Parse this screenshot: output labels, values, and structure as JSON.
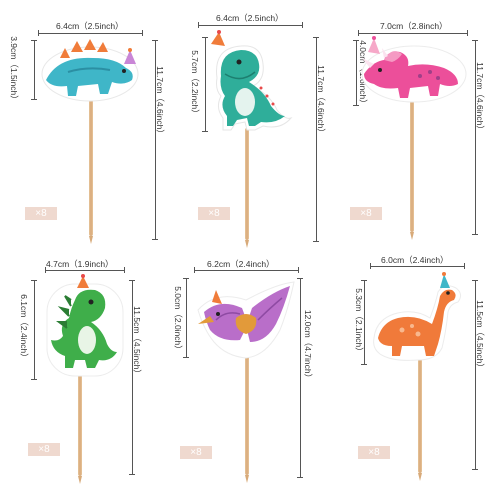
{
  "toppers": [
    {
      "name": "stegosaurus",
      "width": "6.4cm（2.5inch）",
      "head_height": "3.9cm（1.5inch）",
      "total_height": "11.7cm（4.6inch）",
      "quantity": "×8",
      "body_color": "#3fb6c8",
      "accent_color": "#f07c3a"
    },
    {
      "name": "t-rex-green",
      "width": "6.4cm（2.5inch）",
      "head_height": "5.7cm（2.2inch）",
      "total_height": "11.7cm（4.6inch）",
      "quantity": "×8",
      "body_color": "#2fae9a",
      "accent_color": "#e84a4a"
    },
    {
      "name": "triceratops",
      "width": "7.0cm（2.8inch）",
      "head_height": "4.0cm（1.6inch）",
      "total_height": "11.7cm（4.6inch）",
      "quantity": "×8",
      "body_color": "#ec4f9a",
      "accent_color": "#a03f88"
    },
    {
      "name": "dino-green",
      "width": "4.7cm（1.9inch）",
      "head_height": "6.1cm（2.4inch）",
      "total_height": "11.5cm（4.5inch）",
      "quantity": "×8",
      "body_color": "#3fae4a",
      "accent_color": "#2b7d34"
    },
    {
      "name": "pterodactyl",
      "width": "6.2cm（2.4inch）",
      "head_height": "5.0cm（2.0inch）",
      "total_height": "12.0cm（4.7inch）",
      "quantity": "×8",
      "body_color": "#b96ec9",
      "accent_color": "#e29a3a"
    },
    {
      "name": "brachiosaurus",
      "width": "6.0cm（2.4inch）",
      "head_height": "5.3cm（2.1inch）",
      "total_height": "11.5cm（4.5inch）",
      "quantity": "×8",
      "body_color": "#f07a3a",
      "accent_color": "#f8b88e"
    }
  ]
}
